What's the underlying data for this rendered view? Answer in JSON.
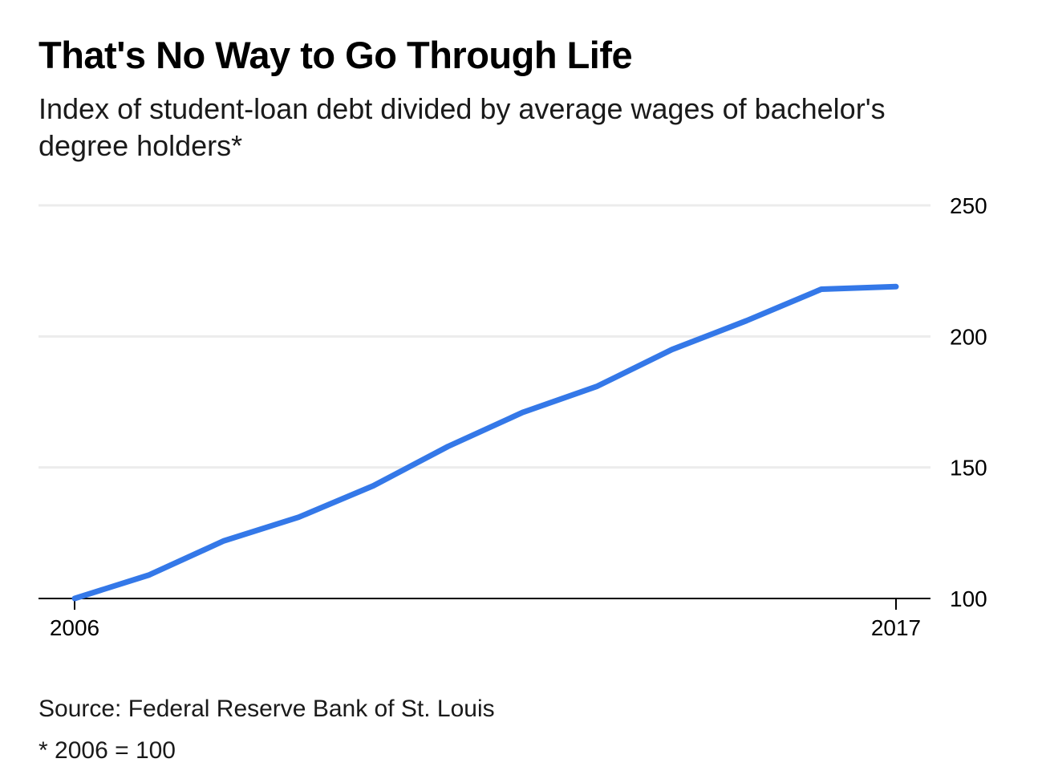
{
  "chart_data": {
    "type": "line",
    "title": "That's No Way to Go Through Life",
    "subtitle": "Index of student-loan debt divided by average wages of bachelor's degree holders*",
    "x": [
      2006,
      2007,
      2008,
      2009,
      2010,
      2011,
      2012,
      2013,
      2014,
      2015,
      2016,
      2017
    ],
    "series": [
      {
        "values": [
          100,
          109,
          122,
          131,
          143,
          158,
          171,
          181,
          195,
          206,
          218,
          219
        ],
        "color": "#3478e8"
      }
    ],
    "xlim": [
      2006,
      2017
    ],
    "ylim": [
      100,
      250
    ],
    "y_ticks": [
      "100",
      "150",
      "200",
      "250"
    ],
    "x_tick_labels": [
      "2006",
      "2017"
    ],
    "grid": true,
    "y_axis_position": "right"
  },
  "source": "Source: Federal Reserve Bank of St. Louis",
  "footnote": "* 2006 = 100",
  "colors": {
    "line": "#3478e8",
    "grid": "#ececec",
    "axis": "#000000"
  }
}
